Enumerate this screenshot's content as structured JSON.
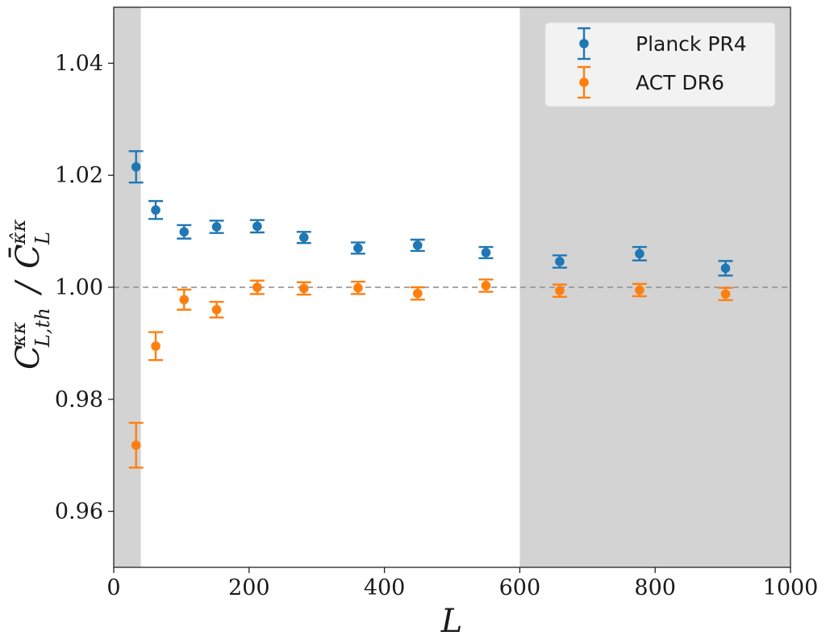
{
  "chart_data": {
    "type": "scatter",
    "title": "",
    "xlabel": "L",
    "ylabel": "C^{κκ}_{L,th} / C̄^{κ̂κ}_L",
    "ylabel_parts": {
      "main1": "C",
      "sup1": "κκ",
      "sub1": "L,th",
      "slash": "/",
      "main2": "C̄",
      "sup2": "κ̂κ",
      "sub2": "L"
    },
    "xlim": [
      0,
      1000
    ],
    "ylim": [
      0.95,
      1.05
    ],
    "xticks": [
      0,
      200,
      400,
      600,
      800,
      1000
    ],
    "xtick_labels": [
      "0",
      "200",
      "400",
      "600",
      "800",
      "1000"
    ],
    "yticks": [
      0.96,
      0.98,
      1.0,
      1.02,
      1.04
    ],
    "ytick_labels": [
      "0.96",
      "0.98",
      "1.00",
      "1.02",
      "1.04"
    ],
    "reference_line": 1.0,
    "excluded_regions": [
      [
        0,
        40
      ],
      [
        600,
        1000
      ]
    ],
    "legend_position": "top-right",
    "series": [
      {
        "name": "Planck PR4",
        "color": "#1f77b4",
        "x": [
          33,
          62,
          104,
          152,
          212,
          281,
          361,
          449,
          550,
          659,
          777,
          904
        ],
        "y": [
          1.0215,
          1.0138,
          1.0099,
          1.0108,
          1.0109,
          1.0089,
          1.007,
          1.0075,
          1.0062,
          1.0046,
          1.006,
          1.0034
        ],
        "err": [
          0.0028,
          0.0016,
          0.0012,
          0.0011,
          0.0011,
          0.001,
          0.001,
          0.001,
          0.001,
          0.0011,
          0.0012,
          0.0013
        ]
      },
      {
        "name": "ACT DR6",
        "color": "#ff7f0e",
        "x": [
          33,
          62,
          104,
          152,
          212,
          281,
          361,
          449,
          550,
          659,
          777,
          904
        ],
        "y": [
          0.9718,
          0.9895,
          0.9978,
          0.996,
          1.0,
          0.9998,
          0.9999,
          0.9989,
          1.0003,
          0.9994,
          0.9995,
          0.9988
        ],
        "err": [
          0.004,
          0.0025,
          0.0018,
          0.0014,
          0.0012,
          0.0011,
          0.0011,
          0.0011,
          0.0011,
          0.0011,
          0.0011,
          0.0011
        ]
      }
    ]
  }
}
